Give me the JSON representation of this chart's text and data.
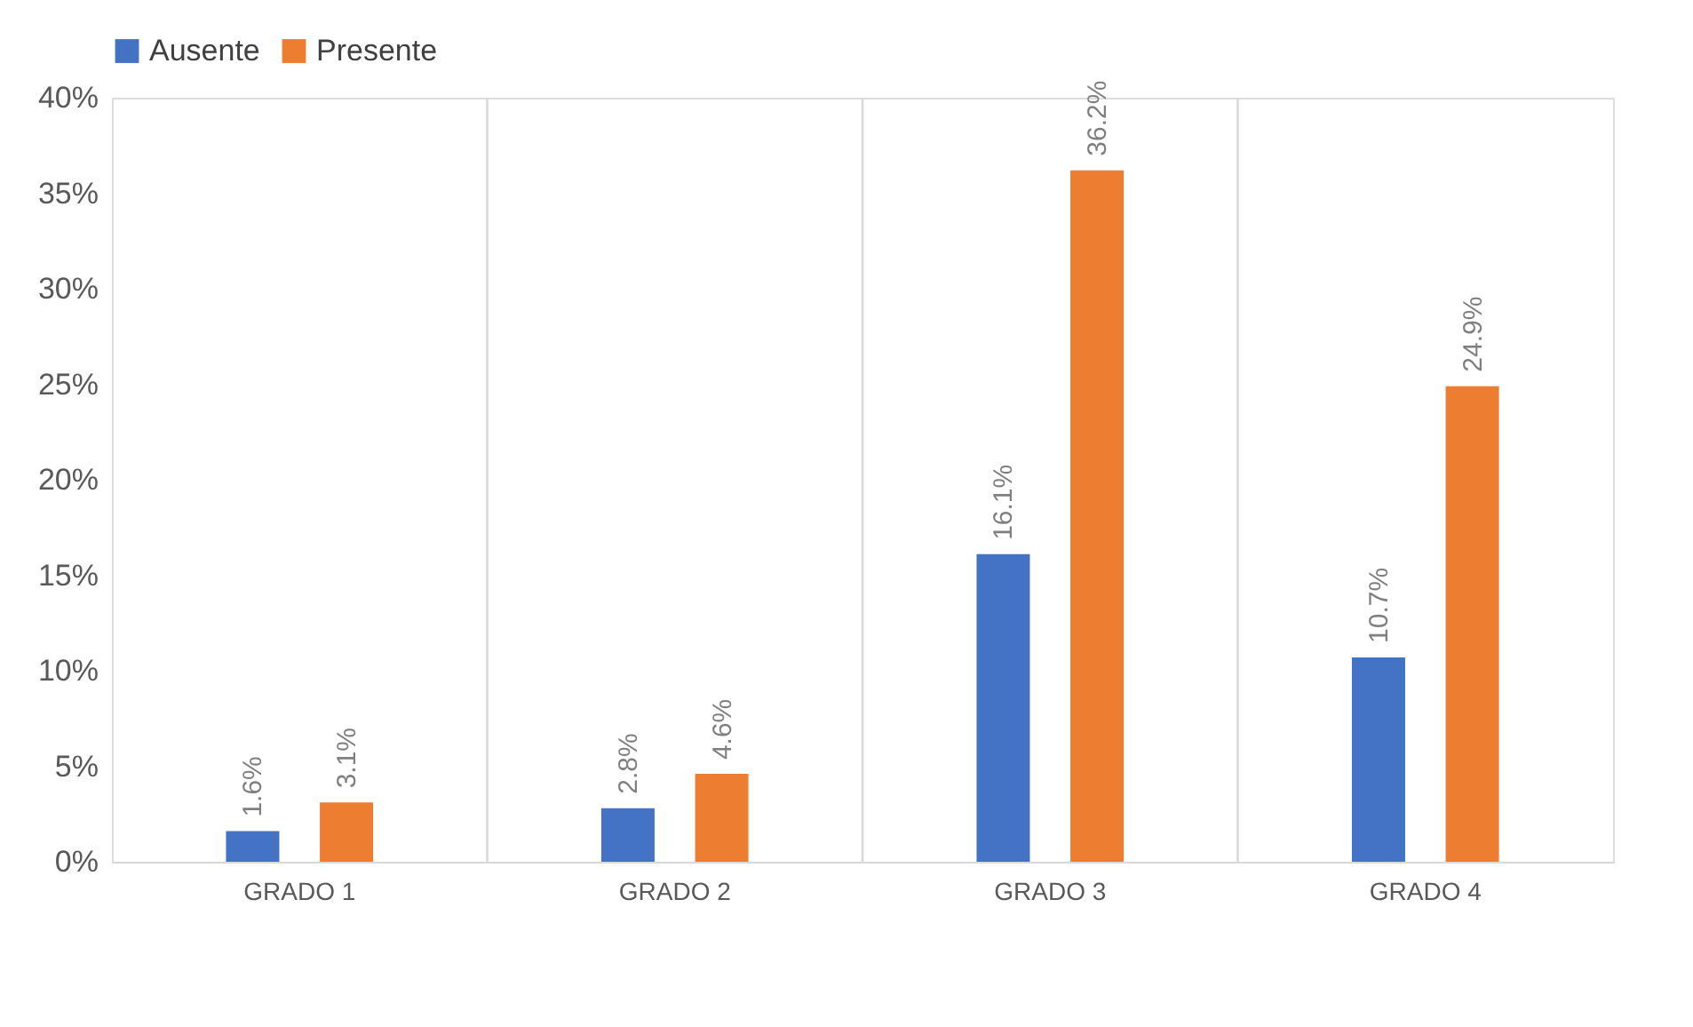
{
  "chart_data": {
    "type": "bar",
    "categories": [
      "GRADO 1",
      "GRADO 2",
      "GRADO 3",
      "GRADO 4"
    ],
    "series": [
      {
        "name": "Ausente",
        "color": "#4472c4",
        "values": [
          1.6,
          2.8,
          16.1,
          10.7
        ],
        "value_labels": [
          "1.6%",
          "2.8%",
          "16.1%",
          "10.7%"
        ]
      },
      {
        "name": "Presente",
        "color": "#ed7d31",
        "values": [
          3.1,
          4.6,
          36.2,
          24.9
        ],
        "value_labels": [
          "3.1%",
          "4.6%",
          "36.2%",
          "24.9%"
        ]
      }
    ],
    "ylim": [
      0,
      40
    ],
    "yticks": [
      {
        "value": 0,
        "label": "0%"
      },
      {
        "value": 5,
        "label": "5%"
      },
      {
        "value": 10,
        "label": "10%"
      },
      {
        "value": 15,
        "label": "15%"
      },
      {
        "value": 20,
        "label": "20%"
      },
      {
        "value": 25,
        "label": "25%"
      },
      {
        "value": 30,
        "label": "30%"
      },
      {
        "value": 35,
        "label": "35%"
      },
      {
        "value": 40,
        "label": "40%"
      }
    ],
    "grid": "x",
    "legend": "top"
  }
}
